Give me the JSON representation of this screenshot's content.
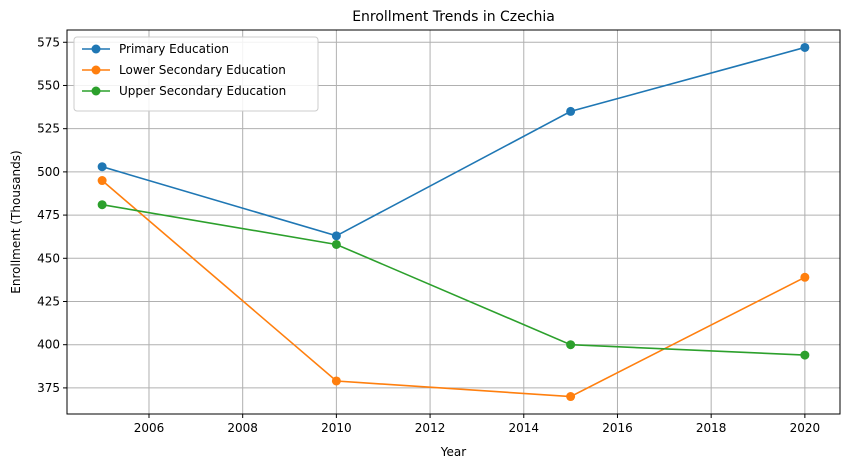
{
  "chart_data": {
    "type": "line",
    "title": "Enrollment Trends in Czechia",
    "xlabel": "Year",
    "ylabel": "Enrollment (Thousands)",
    "x": [
      2005,
      2010,
      2015,
      2020
    ],
    "xlim": [
      2004.25,
      2020.75
    ],
    "ylim": [
      359.9,
      582.1
    ],
    "xticks": [
      2006,
      2008,
      2010,
      2012,
      2014,
      2016,
      2018,
      2020
    ],
    "yticks": [
      375,
      400,
      425,
      450,
      475,
      500,
      525,
      550,
      575
    ],
    "grid": true,
    "legend_position": "top-left",
    "series": [
      {
        "name": "Primary Education",
        "color": "#1f77b4",
        "values": [
          503,
          463,
          535,
          572
        ]
      },
      {
        "name": "Lower Secondary Education",
        "color": "#ff7f0e",
        "values": [
          495,
          379,
          370,
          439
        ]
      },
      {
        "name": "Upper Secondary Education",
        "color": "#2ca02c",
        "values": [
          481,
          458,
          400,
          394
        ]
      }
    ]
  }
}
